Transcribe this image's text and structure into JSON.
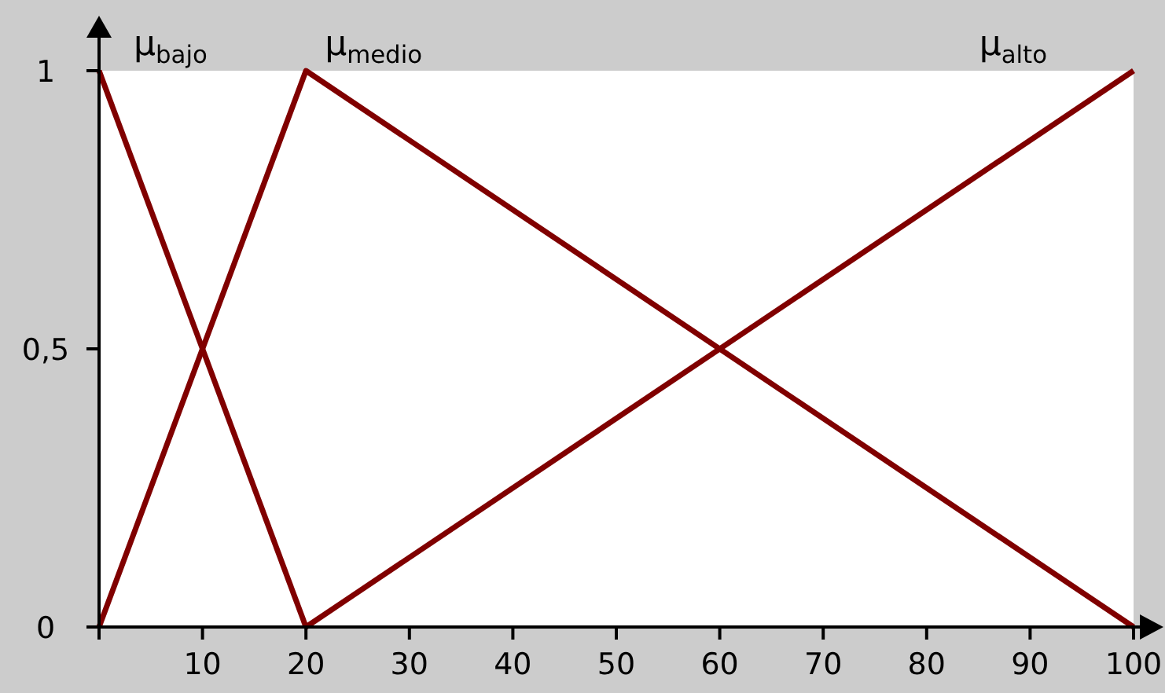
{
  "chart_data": {
    "type": "line",
    "xlim": [
      0,
      100
    ],
    "ylim": [
      0,
      1
    ],
    "xticks": [
      {
        "value": 0,
        "label": null
      },
      10,
      20,
      30,
      40,
      50,
      60,
      70,
      80,
      90,
      100
    ],
    "yticks": [
      0,
      {
        "value": 0.5,
        "label": "0,5"
      },
      1
    ],
    "grid": false,
    "marker": "none",
    "line_style": "solid",
    "series": [
      {
        "name": "μ$_{bajo}$",
        "color": "#800000",
        "x": [
          0,
          20
        ],
        "values": [
          1,
          0
        ]
      },
      {
        "name": "μ$_{medio}$",
        "color": "#800000",
        "x": [
          0,
          20,
          100
        ],
        "values": [
          0,
          1,
          0
        ]
      },
      {
        "name": "μ$_{alto}$",
        "color": "#800000",
        "x": [
          20,
          100
        ],
        "values": [
          0,
          1
        ]
      }
    ]
  }
}
